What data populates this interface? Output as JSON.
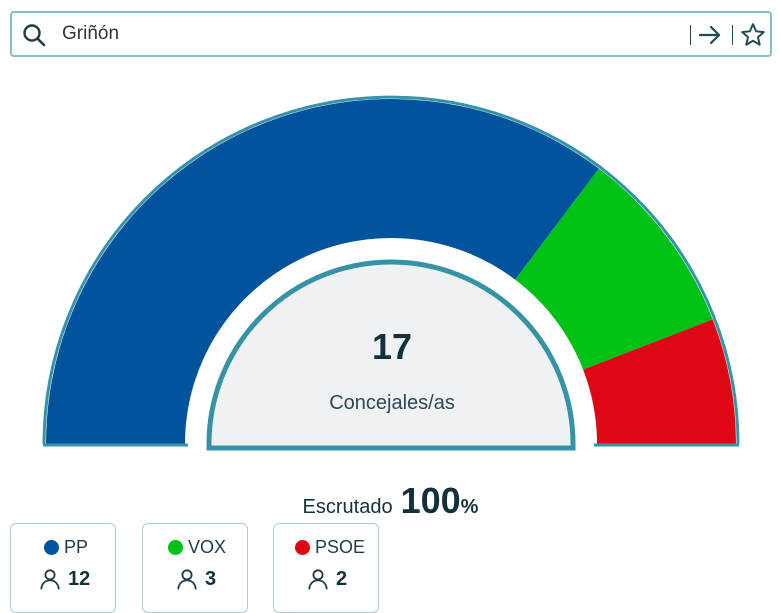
{
  "search": {
    "value": "Griñón",
    "icons": [
      "search-icon",
      "arrow-right-icon",
      "star-icon"
    ]
  },
  "hemicycle": {
    "total_seats": "17",
    "total_label": "Concejales/as"
  },
  "scrutiny": {
    "label": "Escrutado",
    "value": "100",
    "unit": "%"
  },
  "parties": [
    {
      "name": "PP",
      "seats": 12,
      "color": "#02539e"
    },
    {
      "name": "VOX",
      "seats": 3,
      "color": "#00c115"
    },
    {
      "name": "PSOE",
      "seats": 2,
      "color": "#df0716"
    }
  ],
  "colors": {
    "ring": "#3593a8",
    "inner_fill": "#f0f1f3",
    "accent": "#1f4a5a"
  }
}
